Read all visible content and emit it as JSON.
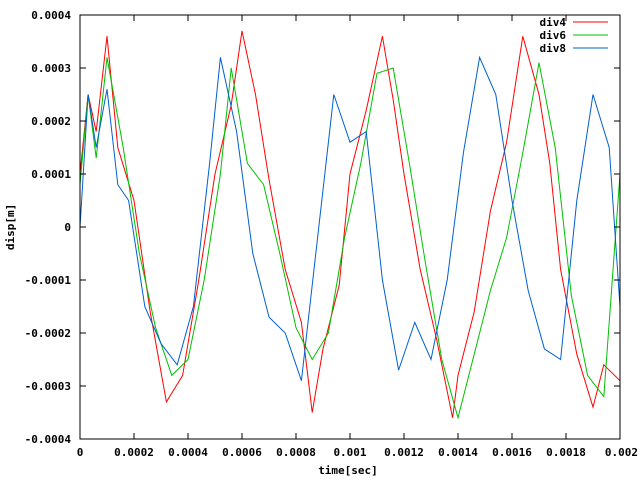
{
  "chart_data": {
    "type": "line",
    "xlabel": "time[sec]",
    "ylabel": "disp[m]",
    "xlim": [
      0,
      0.002
    ],
    "ylim": [
      -0.0004,
      0.0004
    ],
    "x_ticks": [
      "0",
      "0.0002",
      "0.0004",
      "0.0006",
      "0.0008",
      "0.001",
      "0.0012",
      "0.0014",
      "0.0016",
      "0.0018",
      "0.002"
    ],
    "y_ticks": [
      "0.0004",
      "0.0003",
      "0.0002",
      "0.0001",
      "0",
      "-0.0001",
      "-0.0002",
      "-0.0003",
      "-0.0004"
    ],
    "legend_position": "top-right",
    "grid": false,
    "series": [
      {
        "name": "div4",
        "color": "#ff0000",
        "x": [
          0,
          3e-05,
          6e-05,
          0.0001,
          0.00014,
          0.0002,
          0.00026,
          0.00032,
          0.00038,
          0.00044,
          0.0005,
          0.00056,
          0.0006,
          0.00065,
          0.0007,
          0.00076,
          0.00082,
          0.00086,
          0.0009,
          0.00096,
          0.001,
          0.00106,
          0.00112,
          0.00116,
          0.0012,
          0.00126,
          0.00132,
          0.00138,
          0.0014,
          0.00146,
          0.00152,
          0.00158,
          0.00164,
          0.0017,
          0.00174,
          0.00178,
          0.00184,
          0.0019,
          0.00194,
          0.002
        ],
        "y": [
          0.0001,
          0.00025,
          0.00018,
          0.00036,
          0.00015,
          5e-05,
          -0.00016,
          -0.00033,
          -0.00028,
          -0.0001,
          0.0001,
          0.00023,
          0.00037,
          0.00025,
          9e-05,
          -8e-05,
          -0.00018,
          -0.00035,
          -0.00023,
          -0.00011,
          0.0001,
          0.00022,
          0.00036,
          0.00024,
          0.0001,
          -8e-05,
          -0.00021,
          -0.00036,
          -0.00028,
          -0.00016,
          3e-05,
          0.00016,
          0.00036,
          0.00025,
          0.00012,
          -8e-05,
          -0.00024,
          -0.00034,
          -0.00026,
          -0.00029
        ]
      },
      {
        "name": "div6",
        "color": "#00c000",
        "x": [
          0,
          3e-05,
          6e-05,
          0.0001,
          0.00016,
          0.00022,
          0.00028,
          0.00034,
          0.0004,
          0.00046,
          0.00052,
          0.00056,
          0.00062,
          0.00068,
          0.00074,
          0.0008,
          0.00086,
          0.00092,
          0.00098,
          0.00104,
          0.0011,
          0.00116,
          0.00122,
          0.00128,
          0.00134,
          0.0014,
          0.00146,
          0.00152,
          0.00158,
          0.00164,
          0.0017,
          0.00176,
          0.00182,
          0.00188,
          0.00194,
          0.002
        ],
        "y": [
          8e-05,
          0.00025,
          0.00013,
          0.00032,
          0.00015,
          -5e-05,
          -0.00019,
          -0.00028,
          -0.00025,
          -0.0001,
          0.0001,
          0.0003,
          0.00012,
          8e-05,
          -5e-05,
          -0.00019,
          -0.00025,
          -0.0002,
          -2e-05,
          0.00012,
          0.00029,
          0.0003,
          0.00012,
          -7e-05,
          -0.00025,
          -0.00036,
          -0.00024,
          -0.00012,
          -2e-05,
          0.00014,
          0.00031,
          0.00015,
          -0.00013,
          -0.00028,
          -0.00032,
          0.0001
        ]
      },
      {
        "name": "div8",
        "color": "#0060d0",
        "x": [
          0,
          3e-05,
          6e-05,
          0.0001,
          0.00014,
          0.00018,
          0.00024,
          0.0003,
          0.00036,
          0.00042,
          0.00048,
          0.00052,
          0.00058,
          0.00064,
          0.0007,
          0.00076,
          0.00082,
          0.00088,
          0.00094,
          0.001,
          0.00106,
          0.00112,
          0.00118,
          0.00124,
          0.0013,
          0.00136,
          0.00142,
          0.00148,
          0.00154,
          0.0016,
          0.00166,
          0.00172,
          0.00178,
          0.00184,
          0.0019,
          0.00196,
          0.002
        ],
        "y": [
          0,
          0.00025,
          0.00015,
          0.00026,
          8e-05,
          5e-05,
          -0.00015,
          -0.00022,
          -0.00026,
          -0.00015,
          0.00012,
          0.00032,
          0.00018,
          -5e-05,
          -0.00017,
          -0.0002,
          -0.00029,
          -2e-05,
          0.00025,
          0.00016,
          0.00018,
          -0.0001,
          -0.00027,
          -0.00018,
          -0.00025,
          -0.0001,
          0.00014,
          0.00032,
          0.00025,
          5e-05,
          -0.00012,
          -0.00023,
          -0.00025,
          5e-05,
          0.00025,
          0.00015,
          -0.00015
        ]
      }
    ]
  }
}
